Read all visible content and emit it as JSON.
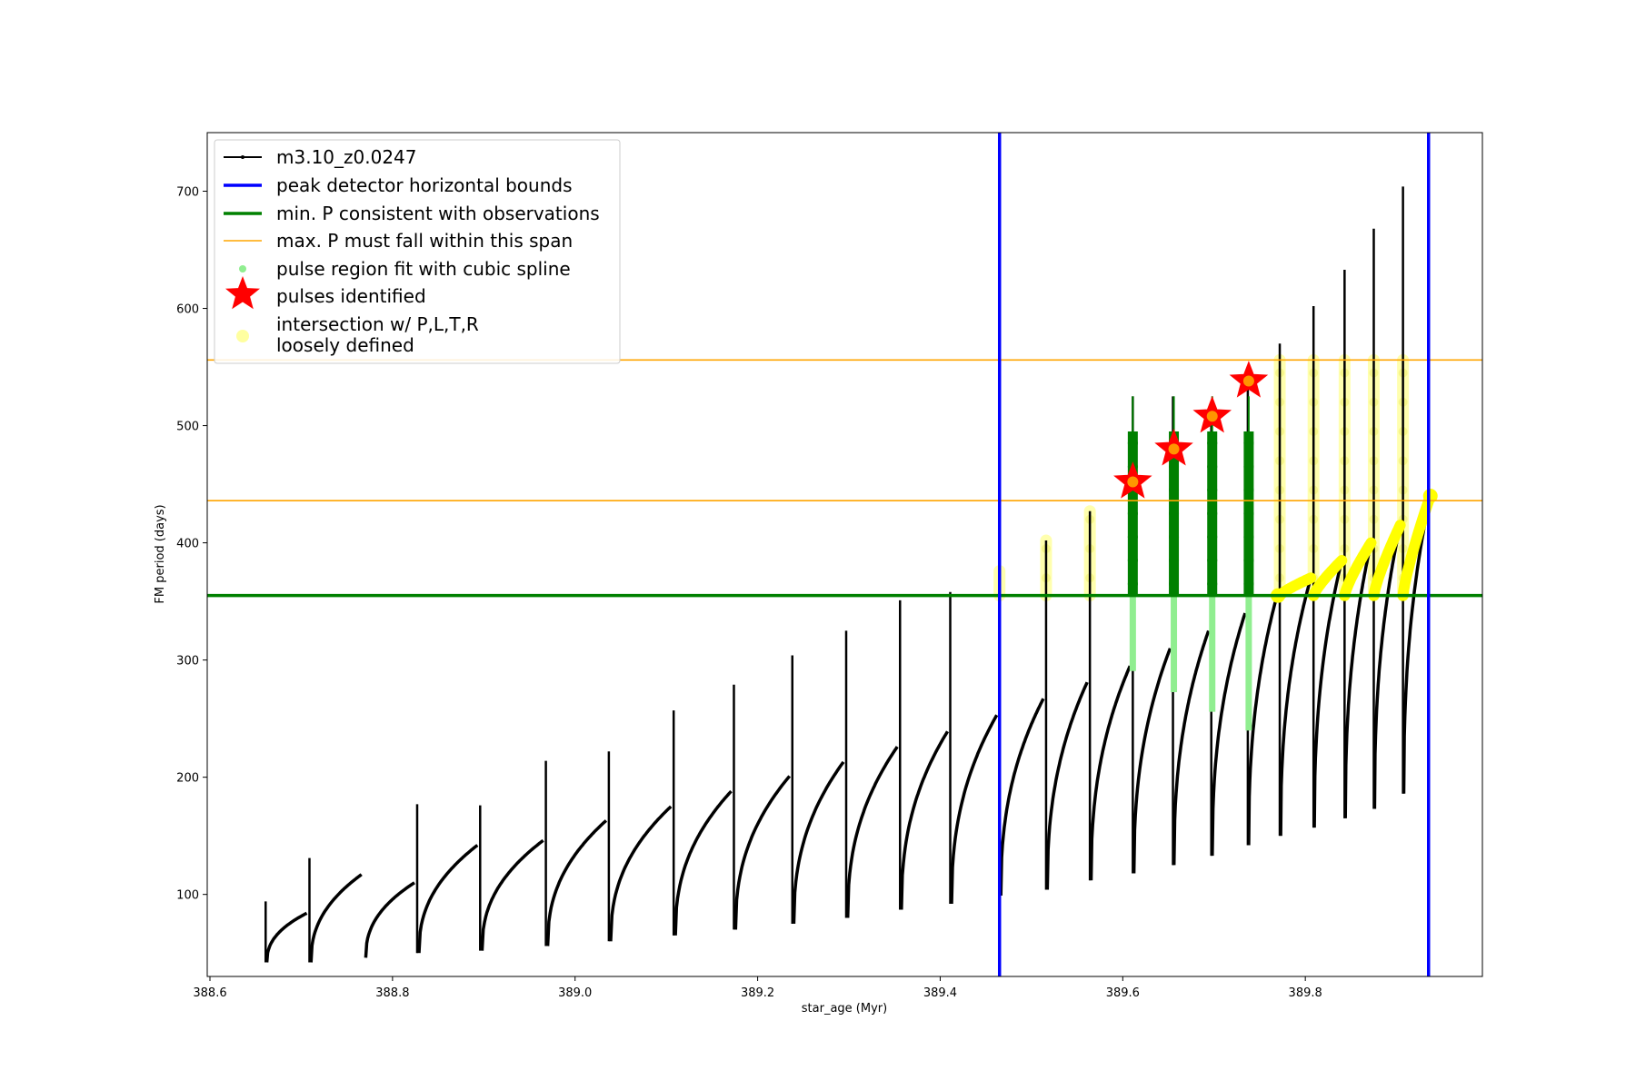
{
  "chart_data": {
    "type": "line",
    "xlabel": "star_age (Myr)",
    "ylabel": "FM period (days)",
    "xlim": [
      388.597,
      389.994
    ],
    "ylim": [
      30,
      750
    ],
    "x_ticks": [
      388.6,
      388.8,
      389.0,
      389.2,
      389.4,
      389.6,
      389.8
    ],
    "y_ticks": [
      100,
      200,
      300,
      400,
      500,
      600,
      700
    ],
    "legend_position": "top-left",
    "colors": {
      "track": "#000000",
      "bounds": "#0000ff",
      "min_period": "#008000",
      "max_period": "#ffa500",
      "spline": "#90ee90",
      "pulses": "#ff0000",
      "pulse_fill": "#ffa500",
      "intersection": "#ffff00",
      "intersection_fill": "#ffffa0"
    },
    "legend": [
      {
        "key": "track",
        "label": "m3.10_z0.0247"
      },
      {
        "key": "bounds",
        "label": "peak detector horizontal bounds"
      },
      {
        "key": "min_period",
        "label": "min. P consistent with observations"
      },
      {
        "key": "max_period",
        "label": "max. P must fall within this span"
      },
      {
        "key": "spline",
        "label": "pulse region fit with cubic spline"
      },
      {
        "key": "pulses",
        "label": "pulses identified"
      },
      {
        "key": "intersection",
        "label": "intersection w/ P,L,T,R",
        "label2": "loosely defined"
      }
    ],
    "vertical_bounds": [
      389.465,
      389.935
    ],
    "min_period": 355,
    "max_period_span": [
      436,
      556
    ],
    "pulses_identified": [
      {
        "x": 389.611,
        "y": 452
      },
      {
        "x": 389.656,
        "y": 480
      },
      {
        "x": 389.698,
        "y": 508
      },
      {
        "x": 389.738,
        "y": 538
      }
    ],
    "track_cycles": [
      {
        "start": 388.661,
        "end": 388.706,
        "min": 42,
        "max": 84,
        "spike": 94
      },
      {
        "start": 388.709,
        "end": 388.766,
        "min": 42,
        "max": 117,
        "spike": 131
      },
      {
        "start": 388.769,
        "end": 388.824,
        "min": 46,
        "max": 110,
        "spike": null
      },
      {
        "start": 388.827,
        "end": 388.893,
        "min": 50,
        "max": 142,
        "spike": 177
      },
      {
        "start": 388.896,
        "end": 388.965,
        "min": 52,
        "max": 146,
        "spike": 176
      },
      {
        "start": 388.968,
        "end": 389.034,
        "min": 56,
        "max": 163,
        "spike": 214
      },
      {
        "start": 389.037,
        "end": 389.105,
        "min": 60,
        "max": 175,
        "spike": 222
      },
      {
        "start": 389.108,
        "end": 389.171,
        "min": 65,
        "max": 188,
        "spike": 257
      },
      {
        "start": 389.174,
        "end": 389.235,
        "min": 70,
        "max": 201,
        "spike": 279
      },
      {
        "start": 389.238,
        "end": 389.294,
        "min": 75,
        "max": 213,
        "spike": 304
      },
      {
        "start": 389.297,
        "end": 389.353,
        "min": 80,
        "max": 226,
        "spike": 325
      },
      {
        "start": 389.356,
        "end": 389.408,
        "min": 87,
        "max": 239,
        "spike": 351
      },
      {
        "start": 389.411,
        "end": 389.462,
        "min": 92,
        "max": 253,
        "spike": 358
      },
      {
        "start": 389.465,
        "end": 389.513,
        "min": 99,
        "max": 267,
        "spike": 376
      },
      {
        "start": 389.516,
        "end": 389.561,
        "min": 104,
        "max": 281,
        "spike": 402
      },
      {
        "start": 389.564,
        "end": 389.608,
        "min": 112,
        "max": 295,
        "spike": 427
      },
      {
        "start": 389.611,
        "end": 389.652,
        "min": 118,
        "max": 310,
        "spike": 525
      },
      {
        "start": 389.655,
        "end": 389.694,
        "min": 125,
        "max": 325,
        "spike": 525
      },
      {
        "start": 389.697,
        "end": 389.734,
        "min": 133,
        "max": 340,
        "spike": 505
      },
      {
        "start": 389.737,
        "end": 389.769,
        "min": 142,
        "max": 355,
        "spike": 538
      },
      {
        "start": 389.772,
        "end": 389.806,
        "min": 150,
        "max": 370,
        "spike": 570
      },
      {
        "start": 389.809,
        "end": 389.84,
        "min": 157,
        "max": 385,
        "spike": 602
      },
      {
        "start": 389.843,
        "end": 389.872,
        "min": 165,
        "max": 400,
        "spike": 633
      },
      {
        "start": 389.875,
        "end": 389.904,
        "min": 173,
        "max": 415,
        "spike": 668
      },
      {
        "start": 389.907,
        "end": 389.937,
        "min": 186,
        "max": 440,
        "spike": 704
      }
    ]
  }
}
